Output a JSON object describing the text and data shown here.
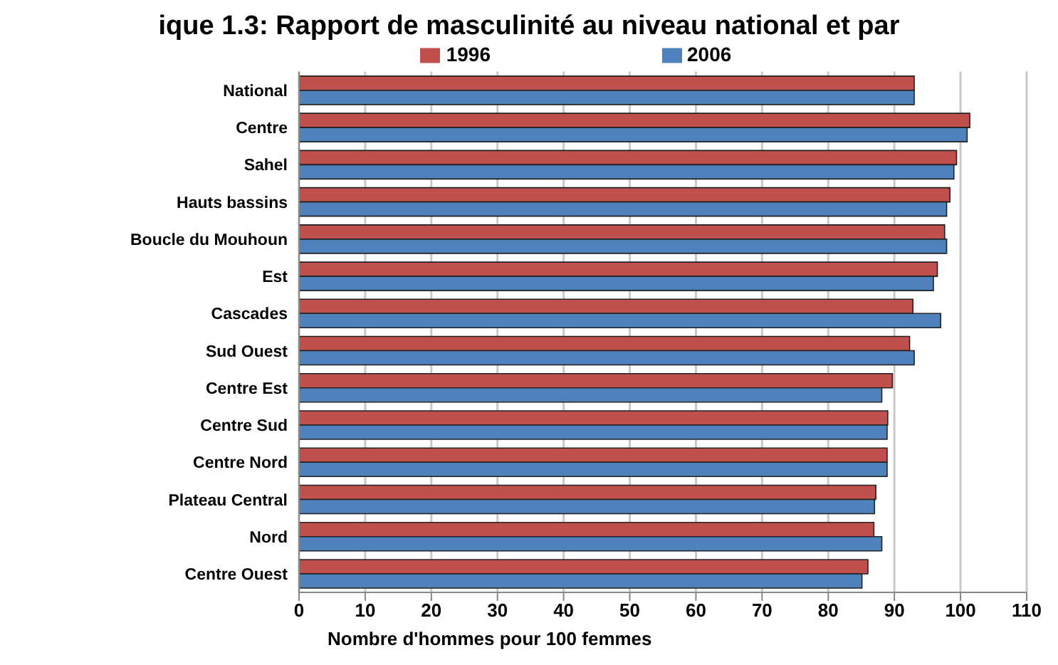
{
  "chart_data": {
    "type": "bar",
    "orientation": "horizontal",
    "title": "ique 1.3: Rapport de masculinité au niveau national et par",
    "xlabel": "Nombre d'hommes pour 100  femmes",
    "categories": [
      "National",
      "Centre",
      "Sahel",
      "Hauts bassins",
      "Boucle du Mouhoun",
      "Est",
      "Cascades",
      "Sud Ouest",
      "Centre Est",
      "Centre Sud",
      "Centre Nord",
      "Plateau Central",
      "Nord",
      "Centre Ouest"
    ],
    "series": [
      {
        "name": "1996",
        "color": "#c0504d",
        "values": [
          93.0,
          101.4,
          99.4,
          98.4,
          97.6,
          96.5,
          92.8,
          92.3,
          89.7,
          89.0,
          88.9,
          87.2,
          86.9,
          86.0
        ]
      },
      {
        "name": "2006",
        "color": "#4f81bd",
        "values": [
          93.0,
          101.0,
          99.0,
          97.9,
          97.9,
          95.9,
          97.0,
          93.0,
          88.1,
          88.9,
          88.9,
          87.0,
          88.1,
          85.1
        ]
      }
    ],
    "xlim": [
      0,
      110
    ],
    "xticks": [
      0,
      10,
      20,
      30,
      40,
      50,
      60,
      70,
      80,
      90,
      100,
      110
    ],
    "grid": "x",
    "legend": "top"
  }
}
